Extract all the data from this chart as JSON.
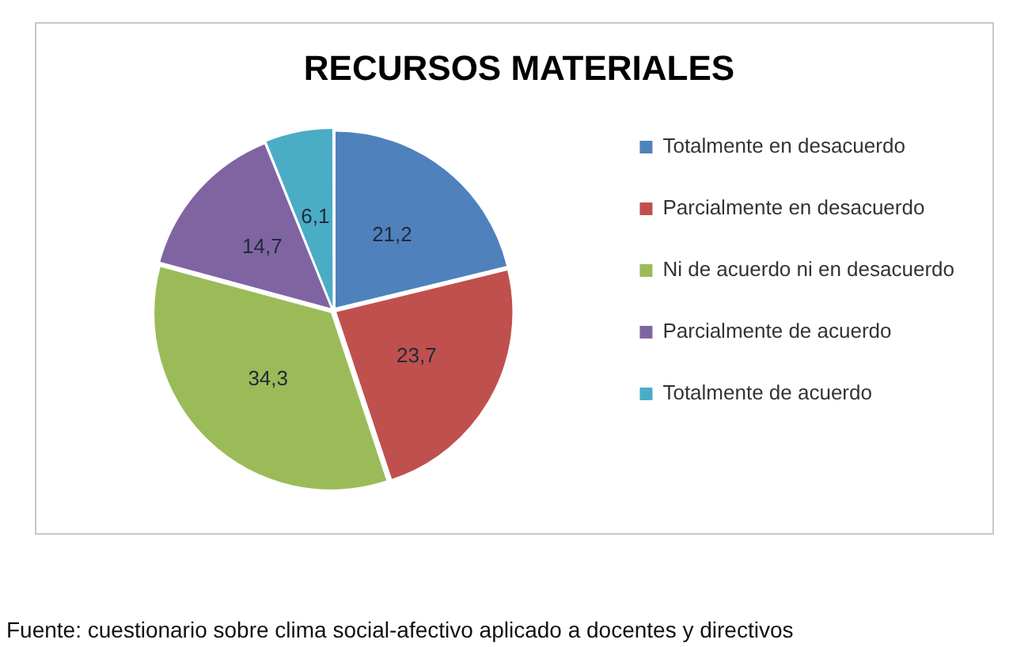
{
  "chart_data": {
    "type": "pie",
    "title": "RECURSOS MATERIALES",
    "categories": [
      "Totalmente en desacuerdo",
      "Parcialmente en desacuerdo",
      "Ni de acuerdo ni en desacuerdo",
      "Parcialmente de acuerdo",
      "Totalmente de acuerdo"
    ],
    "values": [
      21.2,
      23.7,
      34.3,
      14.7,
      6.1
    ],
    "value_labels": [
      "21,2",
      "23,7",
      "34,3",
      "14,7",
      "6,1"
    ],
    "colors": [
      "#4f81bd",
      "#c0504d",
      "#9bbb59",
      "#8064a2",
      "#4bacc6"
    ],
    "legend": "right",
    "annotations": [
      "Fuente: cuestionario sobre clima social-afectivo aplicado a docentes y directivos"
    ]
  }
}
